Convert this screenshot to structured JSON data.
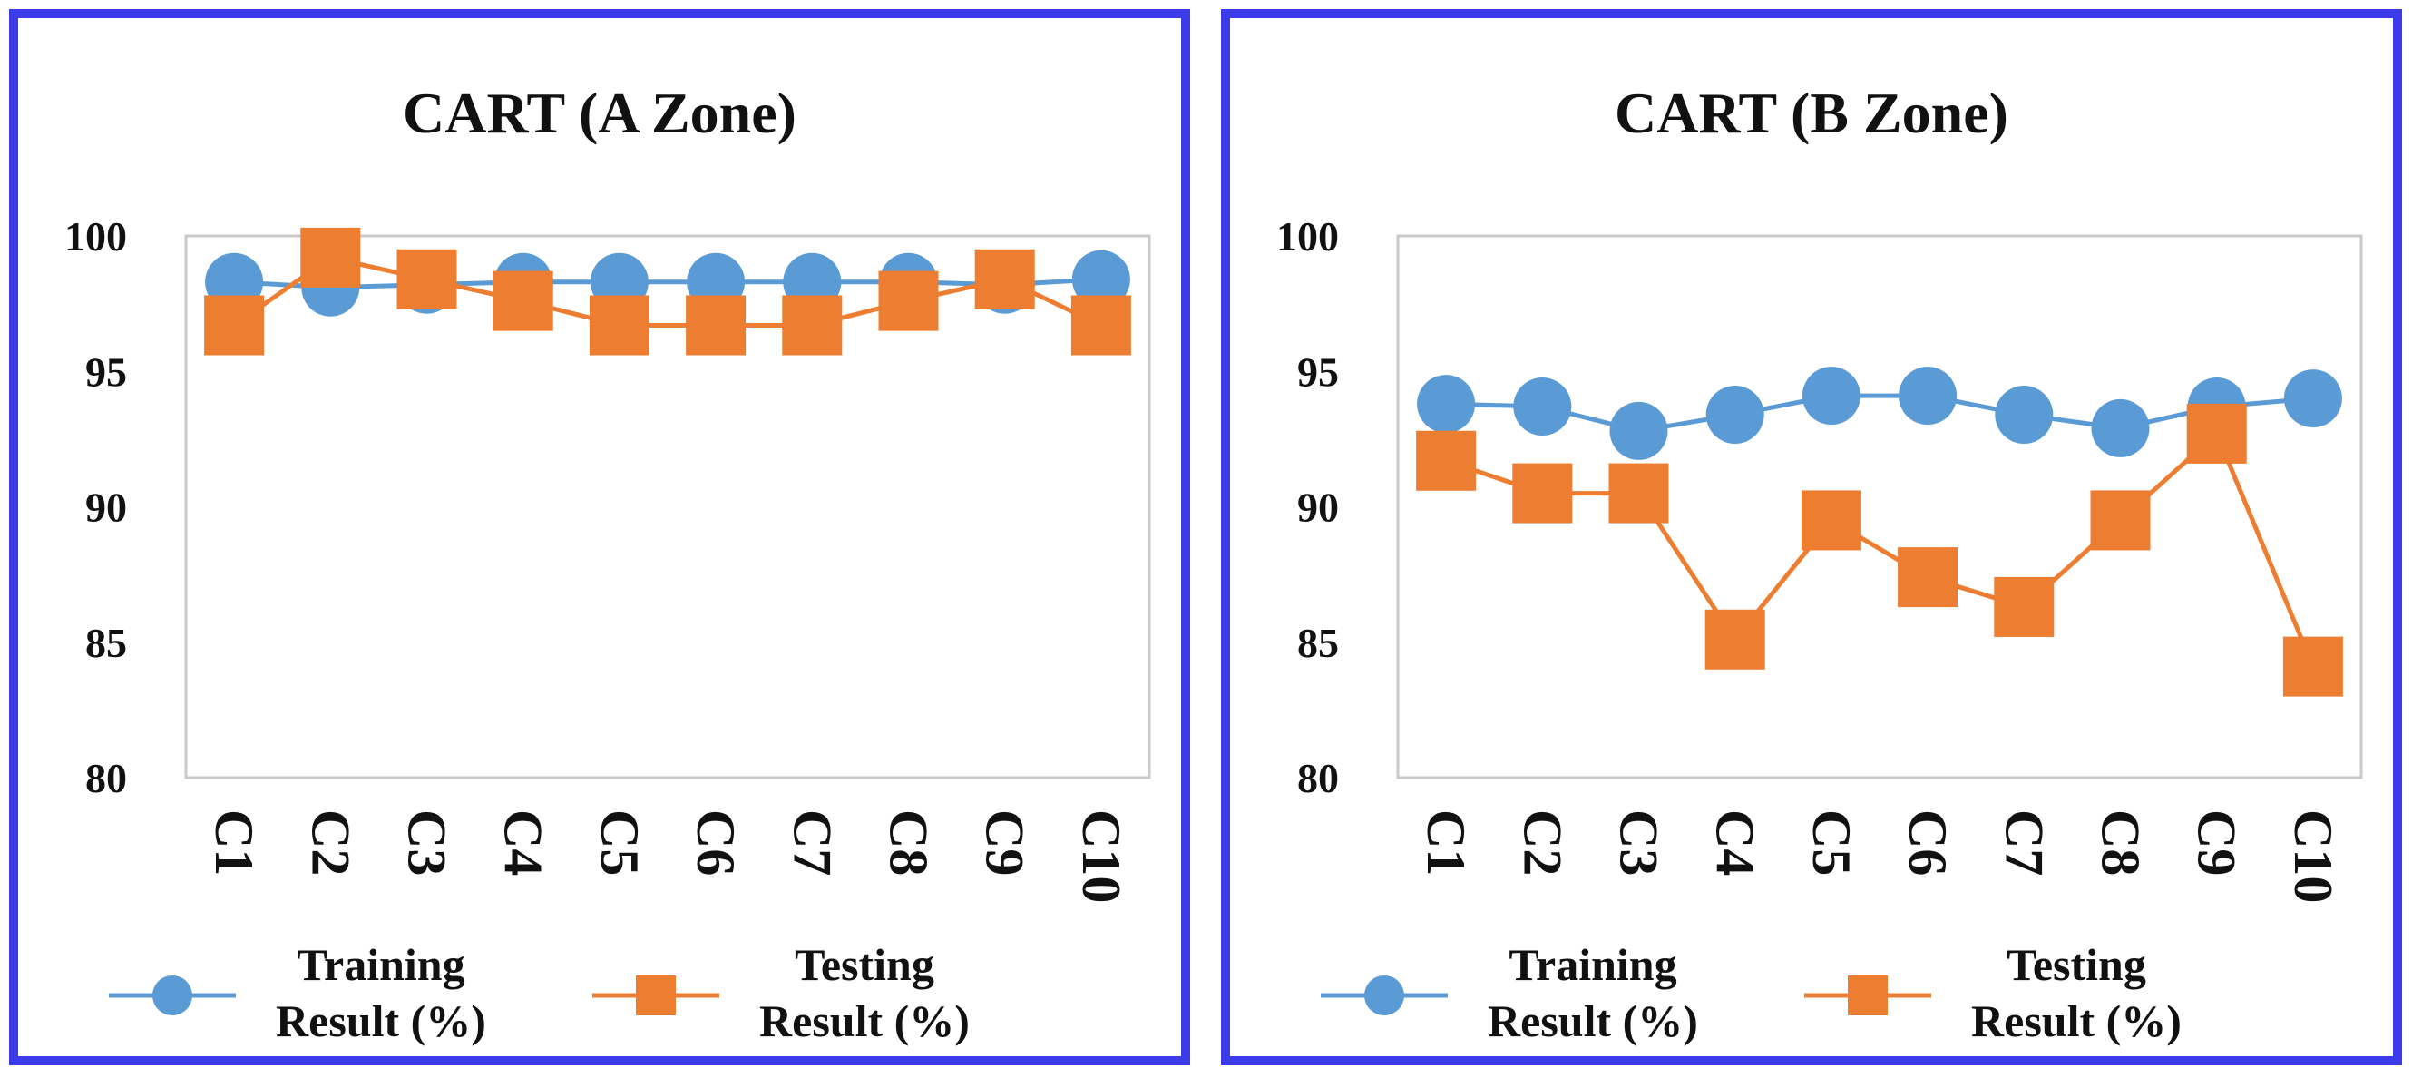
{
  "chart_data": [
    {
      "type": "line",
      "title": "CART (A Zone)",
      "categories": [
        "C1",
        "C2",
        "C3",
        "C4",
        "C5",
        "C6",
        "C7",
        "C8",
        "C9",
        "C10"
      ],
      "ylim": [
        80,
        100
      ],
      "yticks": [
        "100",
        "95",
        "90",
        "85",
        "80"
      ],
      "legend_position": "bottom",
      "series": [
        {
          "name": "Training Result (%)",
          "name_lines": [
            "Training",
            "Result (%)"
          ],
          "marker": "circle",
          "color": "#5b9bd5",
          "values": [
            98.3,
            98.1,
            98.2,
            98.3,
            98.3,
            98.3,
            98.3,
            98.3,
            98.2,
            98.4
          ]
        },
        {
          "name": "Testing Result (%)",
          "name_lines": [
            "Testing",
            "Result (%)"
          ],
          "marker": "square",
          "color": "#ed7d31",
          "values": [
            96.7,
            99.2,
            98.4,
            97.6,
            96.7,
            96.7,
            96.7,
            97.6,
            98.4,
            96.7
          ]
        }
      ]
    },
    {
      "type": "line",
      "title": "CART (B Zone)",
      "categories": [
        "C1",
        "C2",
        "C3",
        "C4",
        "C5",
        "C6",
        "C7",
        "C8",
        "C9",
        "C10"
      ],
      "ylim": [
        80,
        100
      ],
      "yticks": [
        "100",
        "95",
        "90",
        "85",
        "80"
      ],
      "legend_position": "bottom",
      "series": [
        {
          "name": "Training Result (%)",
          "name_lines": [
            "Training",
            "Result (%)"
          ],
          "marker": "circle",
          "color": "#5b9bd5",
          "values": [
            93.8,
            93.7,
            92.8,
            93.4,
            94.1,
            94.1,
            93.4,
            92.9,
            93.7,
            94.0
          ]
        },
        {
          "name": "Testing Result (%)",
          "name_lines": [
            "Testing",
            "Result (%)"
          ],
          "marker": "square",
          "color": "#ed7d31",
          "values": [
            91.7,
            90.5,
            90.5,
            85.1,
            89.5,
            87.4,
            86.3,
            89.5,
            92.7,
            84.1
          ]
        }
      ]
    }
  ]
}
